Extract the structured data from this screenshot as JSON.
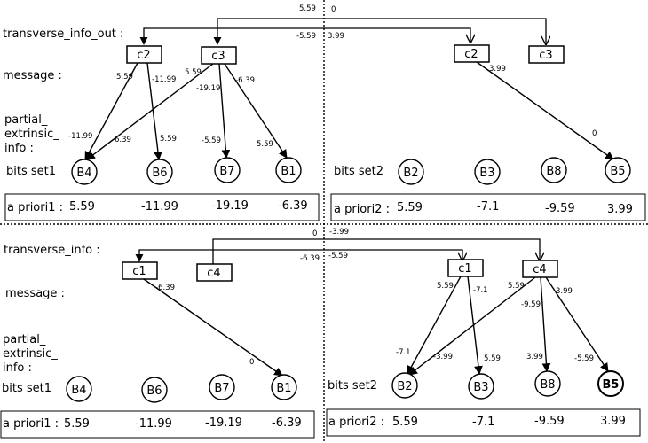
{
  "top": {
    "labels": {
      "transverse": "transverse_info_out :",
      "message": "message   :",
      "partial1": "partial_",
      "partial2": "extrinsic_",
      "partial3": "info :",
      "bits1": "bits set1",
      "bits2": "bits set2"
    },
    "checks_left": [
      "c2",
      "c3"
    ],
    "checks_right": [
      "c2",
      "c3"
    ],
    "bits_left": [
      "B4",
      "B6",
      "B7",
      "B1"
    ],
    "bits_right": [
      "B2",
      "B3",
      "B8",
      "B5"
    ],
    "priori_left": {
      "label": "a priori1 :",
      "values": [
        "5.59",
        "-11.99",
        "-19.19",
        "-6.39"
      ]
    },
    "priori_right": {
      "label": "a priori2 :",
      "values": [
        "5.59",
        "-7.1",
        "-9.59",
        "3.99"
      ]
    },
    "edge_labels": {
      "bus_a": "5.59",
      "bus_b": "0",
      "bus_c": "-5.59",
      "bus_d": "3.99",
      "c2_b4": "5.59",
      "c2_b6": "-11.99",
      "c3_b4_top": "5.59",
      "c3_b4_mid": "-19.19",
      "c3_b1_top": "-6.39",
      "b4_a": "-11.99",
      "b4_b": "6.39",
      "b6_in": "5.59",
      "b7_in": "-5.59",
      "b1_in": "5.59",
      "rc2_out": "3.99",
      "b5_in": "0"
    }
  },
  "bottom": {
    "labels": {
      "transverse": "transverse_info :",
      "message": "message   :",
      "partial1": "partial_",
      "partial2": "extrinsic_",
      "partial3": "info :",
      "bits1": "bits set1",
      "bits2": "bits set2"
    },
    "checks_left": [
      "c1",
      "c4"
    ],
    "checks_right": [
      "c1",
      "c4"
    ],
    "bits_left": [
      "B4",
      "B6",
      "B7",
      "B1"
    ],
    "bits_right": [
      "B2",
      "B3",
      "B8",
      "B5"
    ],
    "priori_left": {
      "label": "a priori1 :",
      "values": [
        "5.59",
        "-11.99",
        "-19.19",
        "-6.39"
      ]
    },
    "priori_right": {
      "label": "a priori2 :",
      "values": [
        "5.59",
        "-7.1",
        "-9.59",
        "3.99"
      ]
    },
    "edge_labels": {
      "bus_a": "0",
      "bus_b": "-3.99",
      "bus_c": "-6.39",
      "bus_d": "-5.59",
      "c1_out": "-6.39",
      "b1_in": "0",
      "rc1_a": "5.59",
      "rc1_b": "-7.1",
      "rc4_a": "5.59",
      "rc4_b": "3.99",
      "rc4_c": "-9.59",
      "b2_a": "-7.1",
      "b2_b": "-3.99",
      "b3_in": "5.59",
      "b8_in": "3.99",
      "b5_in": "-5.59"
    }
  }
}
